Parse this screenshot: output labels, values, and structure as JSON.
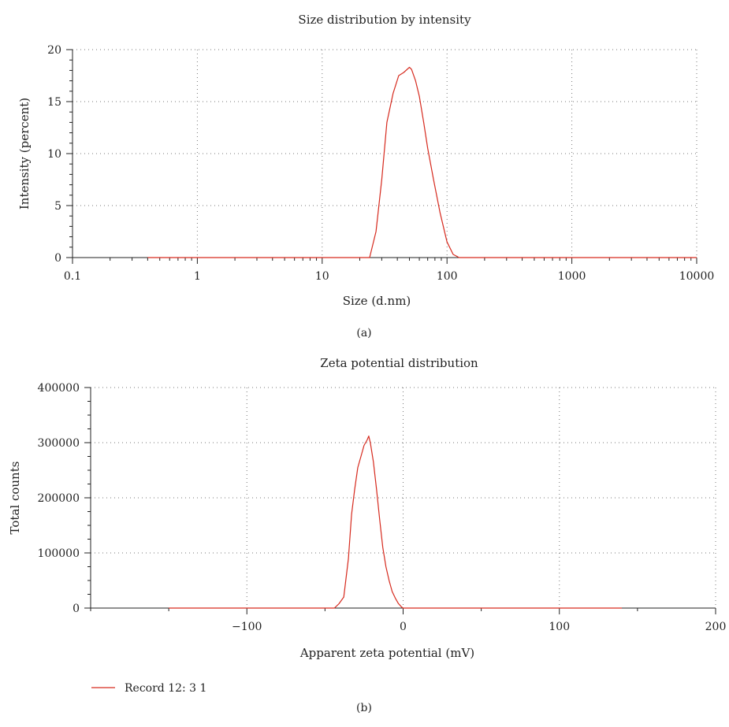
{
  "charts": [
    {
      "type": "line",
      "title": "Size distribution by intensity",
      "xlabel": "Size (d.nm)",
      "ylabel": "Intensity (percent)",
      "panel_label": "(a)",
      "x_scale": "log",
      "xlim": [
        0.1,
        10000
      ],
      "ylim": [
        0,
        20
      ],
      "x_ticks": [
        0.1,
        1,
        10,
        100,
        1000,
        10000
      ],
      "x_tick_labels": [
        "0.1",
        "1",
        "10",
        "100",
        "1000",
        "10000"
      ],
      "y_ticks": [
        0,
        5,
        10,
        15,
        20
      ],
      "y_tick_labels": [
        "0",
        "5",
        "10",
        "15",
        "20"
      ],
      "grid": "dotted",
      "line_color": "#d62a1e",
      "series": [
        {
          "x": [
            0.4,
            1,
            10,
            24,
            27,
            30,
            33,
            37,
            41,
            45,
            50,
            52,
            56,
            60,
            65,
            70,
            78,
            88,
            100,
            112,
            125,
            200,
            1000,
            10000
          ],
          "y": [
            0,
            0,
            0,
            0,
            2.5,
            7.5,
            13,
            15.8,
            17.5,
            17.8,
            18.3,
            18.1,
            17,
            15.5,
            13,
            10.5,
            7.5,
            4.3,
            1.5,
            0.3,
            0,
            0,
            0,
            0
          ]
        }
      ]
    },
    {
      "type": "line",
      "title": "Zeta potential distribution",
      "xlabel": "Apparent zeta potential (mV)",
      "ylabel": "Total counts",
      "panel_label": "(b)",
      "xlim": [
        -200,
        200
      ],
      "ylim": [
        0,
        400000
      ],
      "x_ticks": [
        -100,
        0,
        100,
        200
      ],
      "x_tick_labels": [
        "−100",
        "0",
        "100",
        "200"
      ],
      "y_ticks": [
        0,
        100000,
        200000,
        300000,
        400000
      ],
      "y_tick_labels": [
        "0",
        "100000",
        "200000",
        "300000",
        "400000"
      ],
      "grid": "dotted",
      "line_color": "#d62a1e",
      "legend_position": "bottom-left",
      "series": [
        {
          "name": "Record 12: 3 1",
          "x": [
            -150,
            -100,
            -50,
            -44,
            -41,
            -38,
            -35,
            -33,
            -31,
            -29,
            -27,
            -25,
            -23,
            -22,
            -21,
            -19,
            -17,
            -15,
            -13,
            -11,
            -9,
            -7,
            -5,
            -3,
            -1,
            0,
            50,
            100,
            140
          ],
          "y": [
            0,
            0,
            0,
            0,
            8000,
            20000,
            90000,
            170000,
            215000,
            255000,
            275000,
            295000,
            305000,
            312000,
            300000,
            265000,
            215000,
            160000,
            110000,
            75000,
            50000,
            30000,
            18000,
            8000,
            2000,
            0,
            0,
            0,
            0
          ]
        }
      ]
    }
  ]
}
